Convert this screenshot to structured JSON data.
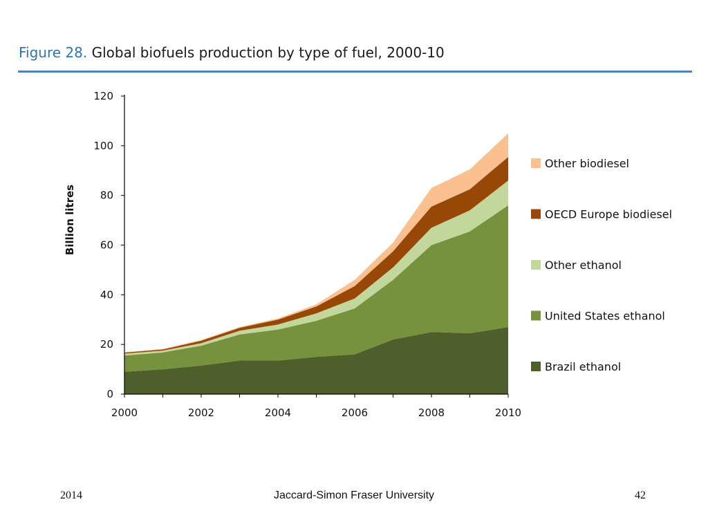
{
  "heading": {
    "figure_number": "Figure 28.",
    "title": "Global biofuels production by type of fuel, 2000-10"
  },
  "footer": {
    "year": "2014",
    "author": "Jaccard-Simon Fraser University",
    "page": "42"
  },
  "chart_data": {
    "type": "area",
    "stacked": true,
    "title": "Global biofuels production by type of fuel, 2000-10",
    "xlabel": "",
    "ylabel": "Billion litres",
    "x": [
      2000,
      2001,
      2002,
      2003,
      2004,
      2005,
      2006,
      2007,
      2008,
      2009,
      2010
    ],
    "x_ticks": [
      "2000",
      "2002",
      "2004",
      "2006",
      "2008",
      "2010"
    ],
    "xlim": [
      2000,
      2010
    ],
    "ylim": [
      0,
      120
    ],
    "y_ticks": [
      "0",
      "20",
      "40",
      "60",
      "80",
      "100",
      "120"
    ],
    "grid": false,
    "legend_position": "right",
    "series": [
      {
        "name": "Brazil ethanol",
        "color": "#4e5f2b",
        "values": [
          9,
          10,
          11.5,
          13.5,
          13.5,
          15,
          16,
          22,
          25,
          24.5,
          27
        ]
      },
      {
        "name": "United States ethanol",
        "color": "#76923c",
        "values": [
          6.5,
          6.8,
          8,
          10.5,
          12.5,
          14.5,
          18.5,
          24,
          35,
          41,
          49
        ]
      },
      {
        "name": "Other ethanol",
        "color": "#c3d69b",
        "values": [
          0.8,
          0.7,
          1,
          1.5,
          2,
          3,
          4,
          5,
          7,
          8.5,
          10
        ]
      },
      {
        "name": "OECD Europe biodiesel",
        "color": "#974706",
        "values": [
          0.4,
          0.5,
          1,
          1.2,
          2,
          2.8,
          5,
          6.5,
          8.5,
          8.5,
          9.5
        ]
      },
      {
        "name": "Other biodiesel",
        "color": "#fac090",
        "values": [
          0.2,
          0.2,
          0.3,
          0.3,
          0.5,
          0.8,
          2.5,
          3.5,
          7.5,
          8,
          9.5
        ]
      }
    ]
  }
}
